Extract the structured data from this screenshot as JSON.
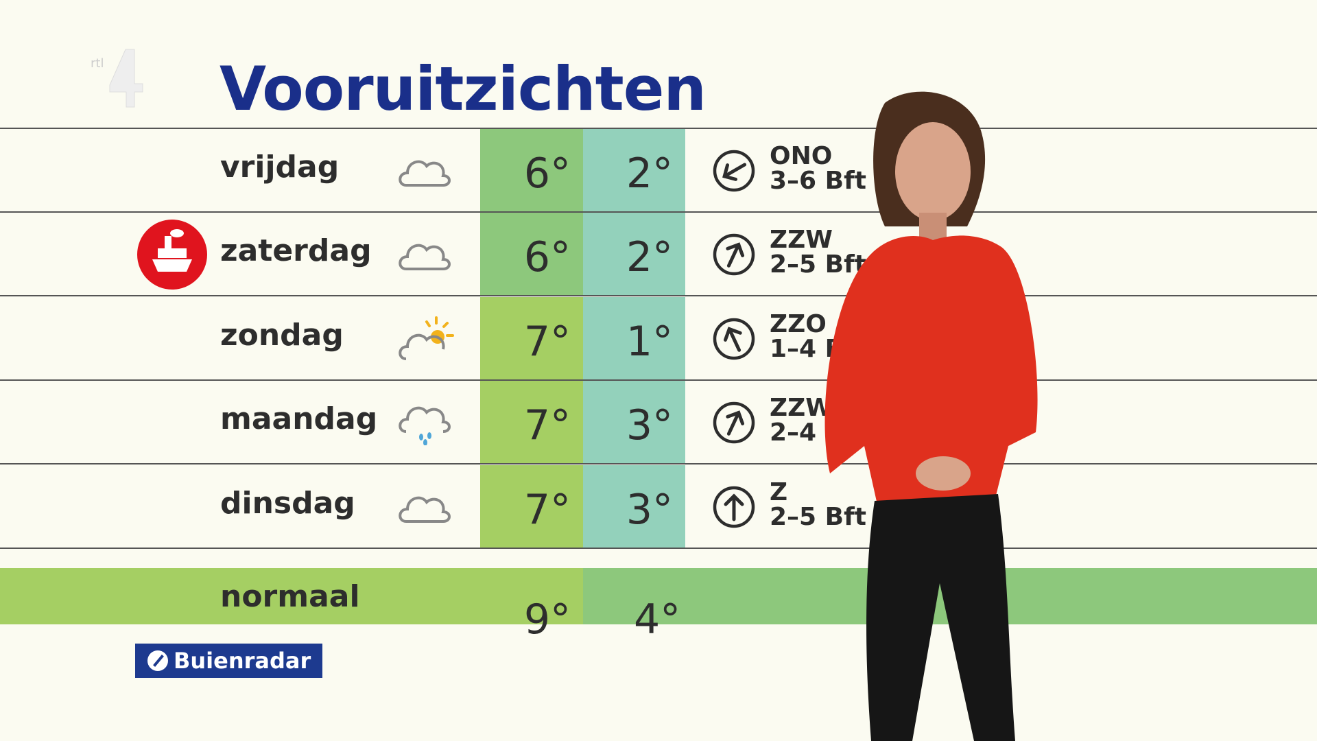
{
  "channel_logo": "rtl 4",
  "title": "Vooruitzichten",
  "colors": {
    "title": "#1a2f8a",
    "max_green": "#8dc87c",
    "max_yellowgreen": "#a5cf63",
    "min_teal": "#93d1bb",
    "ship_red": "#e0141e",
    "buienradar_blue": "#1d3a8f"
  },
  "forecast": [
    {
      "day": "vrijdag",
      "icon": "cloud-icon",
      "max": "6°",
      "min": "2°",
      "wind_dir": "ONO",
      "wind_force": "3–6 Bft",
      "arrow_deg": -120
    },
    {
      "day": "zaterdag",
      "icon": "cloud-icon",
      "max": "6°",
      "min": "2°",
      "wind_dir": "ZZW",
      "wind_force": "2–5 Bft",
      "arrow_deg": 25,
      "badge": "ferry-icon"
    },
    {
      "day": "zondag",
      "icon": "cloud-sun-icon",
      "max": "7°",
      "min": "1°",
      "wind_dir": "ZZO",
      "wind_force": "1–4 Bft",
      "arrow_deg": -25
    },
    {
      "day": "maandag",
      "icon": "cloud-rain-icon",
      "max": "7°",
      "min": "3°",
      "wind_dir": "ZZW",
      "wind_force": "2–4 Bft",
      "arrow_deg": 25
    },
    {
      "day": "dinsdag",
      "icon": "cloud-icon",
      "max": "7°",
      "min": "3°",
      "wind_dir": "Z",
      "wind_force": "2–5 Bft",
      "arrow_deg": 0
    }
  ],
  "normal": {
    "label": "normaal",
    "max": "9°",
    "min": "4°"
  },
  "sponsor": "Buienradar"
}
